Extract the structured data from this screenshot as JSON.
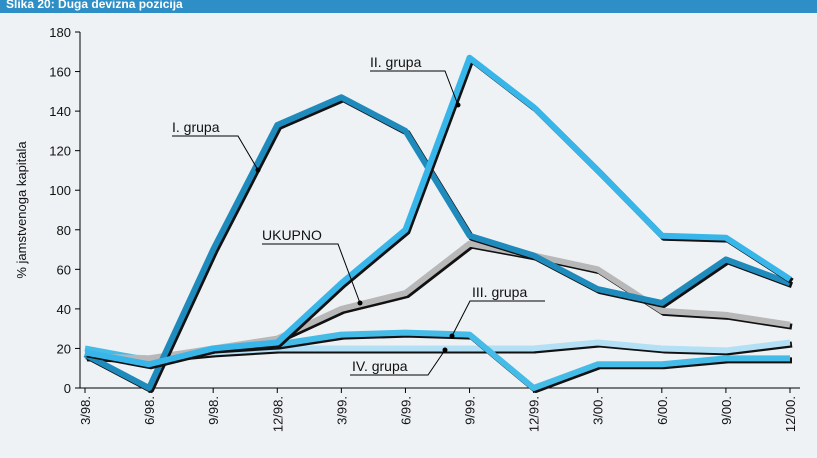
{
  "chart_data": {
    "type": "line",
    "title": "Slika 20: Duga devizna pozicija",
    "y_label": "% jamstvenoga kapitala",
    "categories": [
      "3/98.",
      "6/98.",
      "9/98.",
      "12/98.",
      "3/99.",
      "6/99.",
      "9/99.",
      "12/99.",
      "3/00.",
      "6/00.",
      "9/00.",
      "12/00."
    ],
    "series": [
      {
        "name": "IV. grupa",
        "color": "#b3e0f5",
        "values": [
          17,
          15,
          18,
          20,
          20,
          20,
          20,
          20,
          23,
          20,
          19,
          23
        ]
      },
      {
        "name": "III. grupa",
        "color": "#45bce8",
        "values": [
          20,
          14,
          20,
          22,
          27,
          28,
          27,
          0,
          12,
          12,
          15,
          15
        ]
      },
      {
        "name": "UKUPNO",
        "color": "#b8b8b8",
        "values": [
          16,
          15,
          20,
          25,
          40,
          48,
          73,
          67,
          60,
          39,
          37,
          32
        ]
      },
      {
        "name": "I. grupa",
        "color": "#1f8bbd",
        "values": [
          17,
          0,
          70,
          133,
          147,
          130,
          77,
          67,
          50,
          43,
          65,
          53
        ]
      },
      {
        "name": "II. grupa",
        "color": "#38b6ea",
        "values": [
          18,
          12,
          20,
          23,
          53,
          80,
          167,
          142,
          110,
          77,
          76,
          55
        ]
      }
    ],
    "ylim": [
      0,
      180
    ],
    "yticks": [
      0,
      20,
      40,
      60,
      80,
      100,
      120,
      140,
      160,
      180
    ]
  }
}
